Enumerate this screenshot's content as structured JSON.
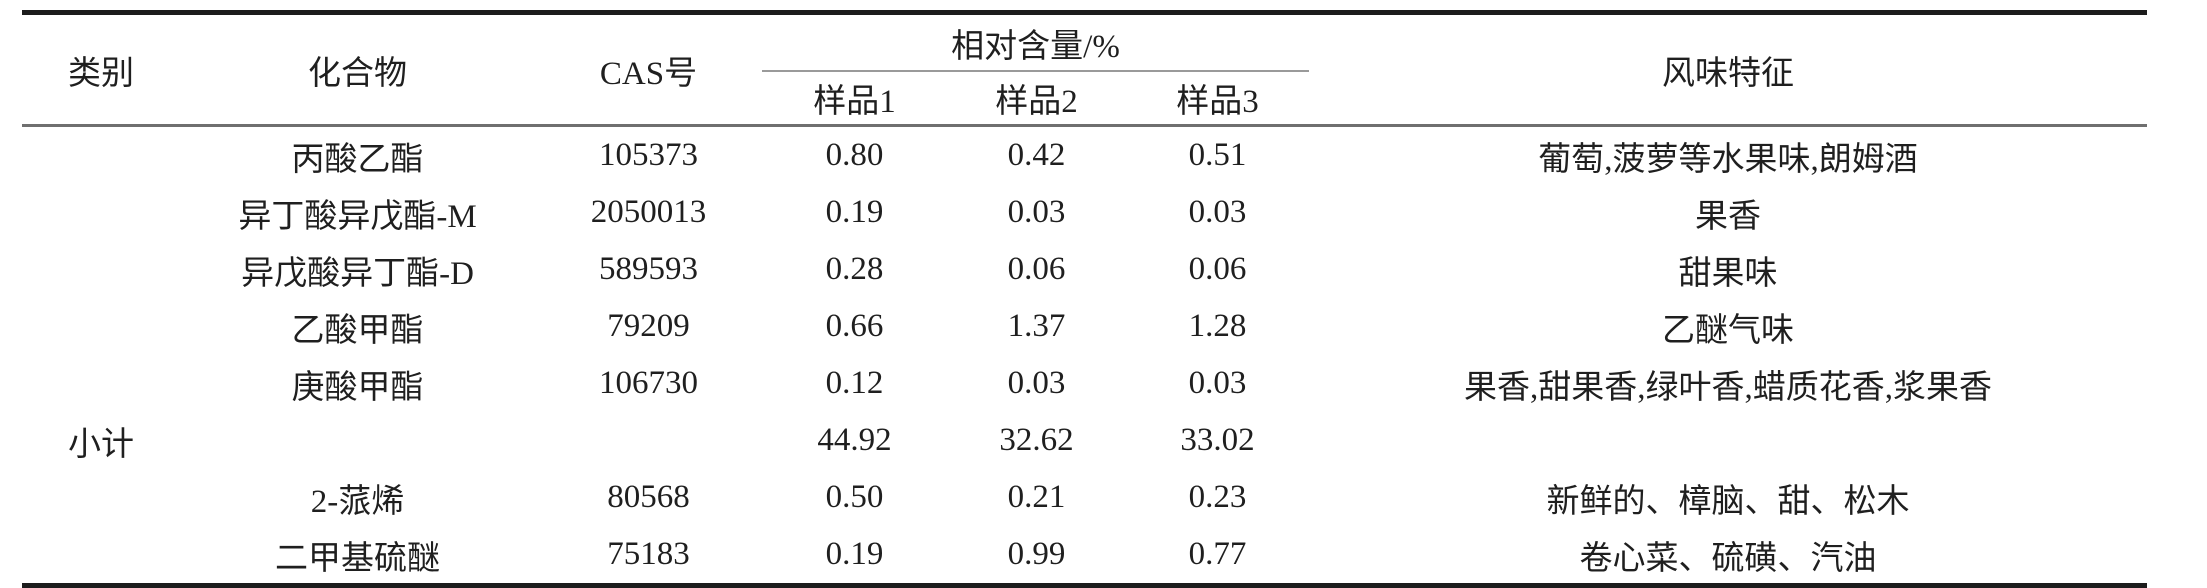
{
  "table": {
    "header": {
      "category": "类别",
      "compound": "化合物",
      "cas": "CAS号",
      "relative_content_group": "相对含量/%",
      "sample1": "样品1",
      "sample2": "样品2",
      "sample3": "样品3",
      "flavor": "风味特征"
    },
    "rows": [
      {
        "category": "",
        "compound": "丙酸乙酯",
        "cas": "105373",
        "s1": "0.80",
        "s2": "0.42",
        "s3": "0.51",
        "flavor": "葡萄,菠萝等水果味,朗姆酒"
      },
      {
        "category": "",
        "compound": "异丁酸异戊酯-M",
        "cas": "2050013",
        "s1": "0.19",
        "s2": "0.03",
        "s3": "0.03",
        "flavor": "果香"
      },
      {
        "category": "",
        "compound": "异戊酸异丁酯-D",
        "cas": "589593",
        "s1": "0.28",
        "s2": "0.06",
        "s3": "0.06",
        "flavor": "甜果味"
      },
      {
        "category": "",
        "compound": "乙酸甲酯",
        "cas": "79209",
        "s1": "0.66",
        "s2": "1.37",
        "s3": "1.28",
        "flavor": "乙醚气味"
      },
      {
        "category": "",
        "compound": "庚酸甲酯",
        "cas": "106730",
        "s1": "0.12",
        "s2": "0.03",
        "s3": "0.03",
        "flavor": "果香,甜果香,绿叶香,蜡质花香,浆果香"
      },
      {
        "category": "小计",
        "compound": "",
        "cas": "",
        "s1": "44.92",
        "s2": "32.62",
        "s3": "33.02",
        "flavor": ""
      },
      {
        "category": "",
        "compound": "2-蒎烯",
        "cas": "80568",
        "s1": "0.50",
        "s2": "0.21",
        "s3": "0.23",
        "flavor": "新鲜的、樟脑、甜、松木"
      },
      {
        "category": "",
        "compound": "二甲基硫醚",
        "cas": "75183",
        "s1": "0.19",
        "s2": "0.99",
        "s3": "0.77",
        "flavor": "卷心菜、硫磺、汽油"
      }
    ],
    "colors": {
      "border_heavy": "#1c1c1c",
      "border_medium": "#6f6f6f",
      "border_light": "#9a9a9a",
      "text": "#1f1f1f"
    }
  }
}
